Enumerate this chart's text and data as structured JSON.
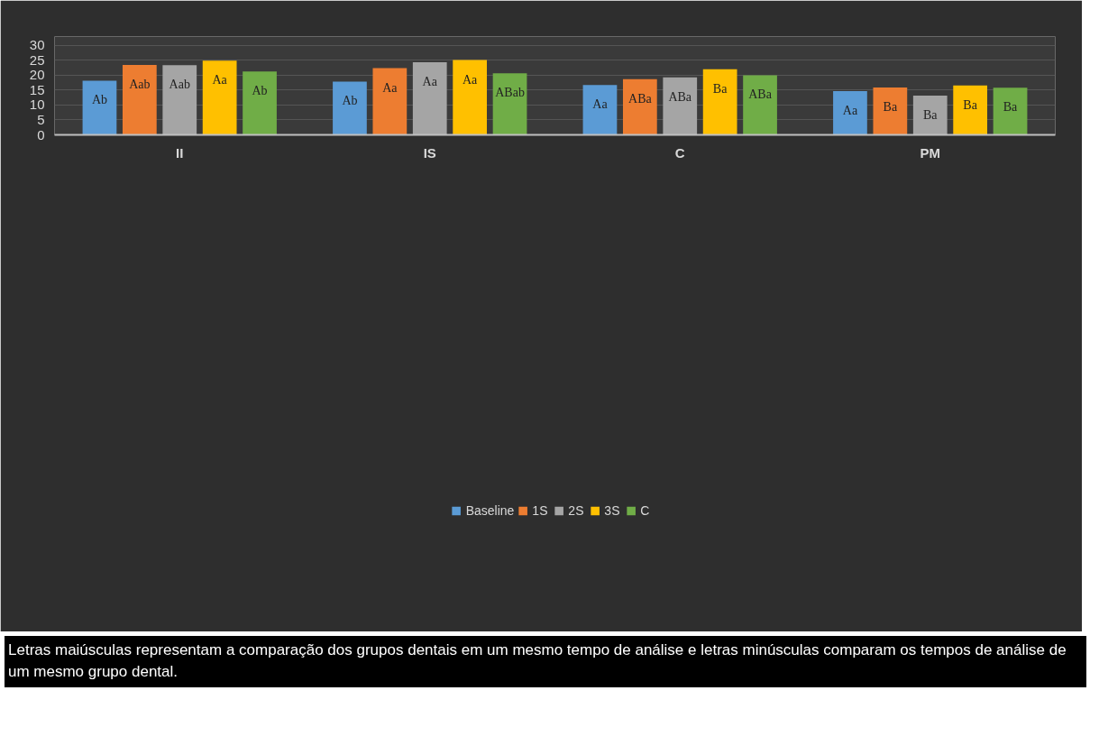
{
  "chart_data": {
    "type": "bar",
    "categories": [
      "II",
      "IS",
      "C",
      "PM"
    ],
    "series": [
      {
        "name": "Baseline",
        "color": "#5b9bd5",
        "values": [
          18.2,
          17.9,
          16.7,
          14.7
        ],
        "value_labels": [
          "Ab",
          "Ab",
          "Aa",
          "Aa"
        ]
      },
      {
        "name": "1S",
        "color": "#ed7d31",
        "values": [
          23.5,
          22.4,
          18.7,
          15.9
        ],
        "value_labels": [
          "Aab",
          "Aa",
          "ABa",
          "Ba"
        ]
      },
      {
        "name": "2S",
        "color": "#a5a5a5",
        "values": [
          23.4,
          24.4,
          19.3,
          13.2
        ],
        "value_labels": [
          "Aab",
          "Aa",
          "ABa",
          "Ba"
        ]
      },
      {
        "name": "3S",
        "color": "#ffc000",
        "values": [
          24.9,
          25.1,
          22.0,
          16.6
        ],
        "value_labels": [
          "Aa",
          "Aa",
          "Ba",
          "Ba"
        ]
      },
      {
        "name": "C",
        "color": "#70ad47",
        "values": [
          21.3,
          20.7,
          20.0,
          15.8
        ],
        "value_labels": [
          "Ab",
          "ABab",
          "ABa",
          "Ba"
        ]
      }
    ],
    "ylim": [
      0,
      33
    ],
    "yticks": [
      0,
      5,
      10,
      15,
      20,
      25,
      30
    ],
    "grid": "y",
    "legend": "bottom",
    "annotations": [
      "Letras maiúsculas representam a comparação dos grupos dentais em um mesmo tempo de análise e letras minúsculas comparam os tempos de análise de um mesmo grupo dental."
    ]
  }
}
